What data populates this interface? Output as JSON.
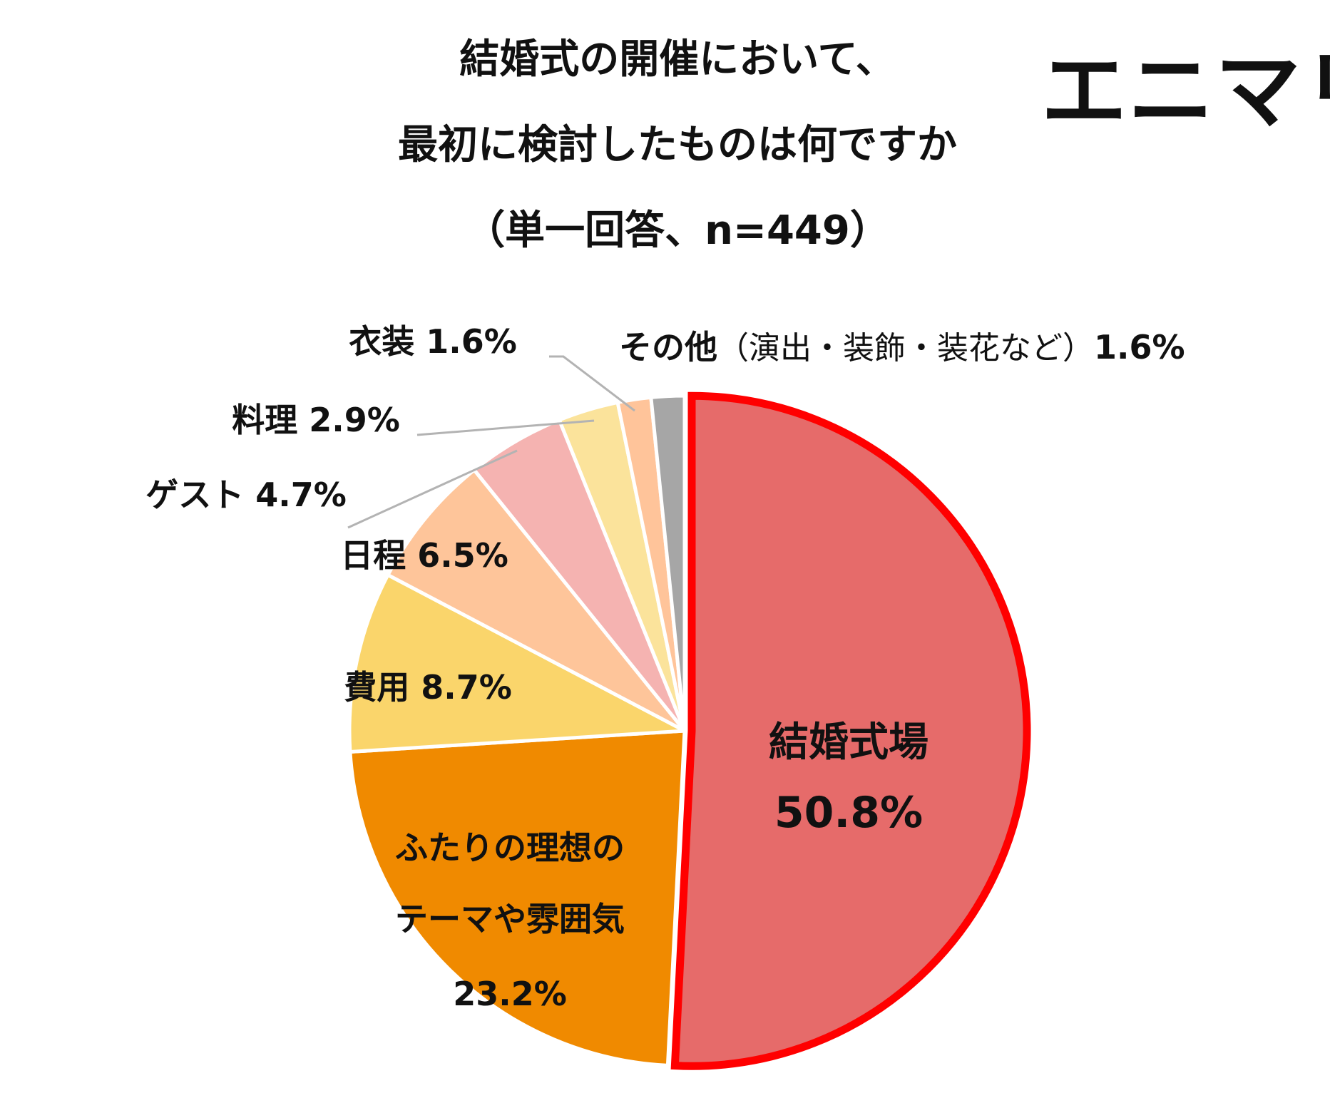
{
  "title": {
    "line1": "結婚式の開催において、",
    "line2": "最初に検討したものは何ですか",
    "line3": "（単一回答、n=449）"
  },
  "logo": {
    "text": "エニマリ"
  },
  "chart_data": {
    "type": "pie",
    "start_angle_deg": 0,
    "direction": "clockwise",
    "highlight": "結婚式場",
    "slices": [
      {
        "label": "結婚式場",
        "value": 50.8,
        "value_label": "50.8%",
        "color": "#E66B6A"
      },
      {
        "label_lines": [
          "ふたりの理想の",
          "テーマや雰囲気"
        ],
        "value": 23.2,
        "value_label": "23.2%",
        "color": "#F08A00"
      },
      {
        "label": "費用",
        "value": 8.7,
        "value_label": "8.7%",
        "color": "#FAD56B"
      },
      {
        "label": "日程",
        "value": 6.5,
        "value_label": "6.5%",
        "color": "#FEC59A"
      },
      {
        "label": "ゲスト",
        "value": 4.7,
        "value_label": "4.7%",
        "color": "#F5B3B1"
      },
      {
        "label": "料理",
        "value": 2.9,
        "value_label": "2.9%",
        "color": "#FBE39B"
      },
      {
        "label": "衣装",
        "value": 1.6,
        "value_label": "1.6%",
        "color": "#FFC49A"
      },
      {
        "label": "その他",
        "label_suffix": "（演出・装飾・装花など）",
        "value": 1.6,
        "value_label": "1.6%",
        "color": "#A6A6A6"
      }
    ],
    "highlight_border_color": "#FF0000",
    "leader_line_color": "#B3B3B3"
  }
}
